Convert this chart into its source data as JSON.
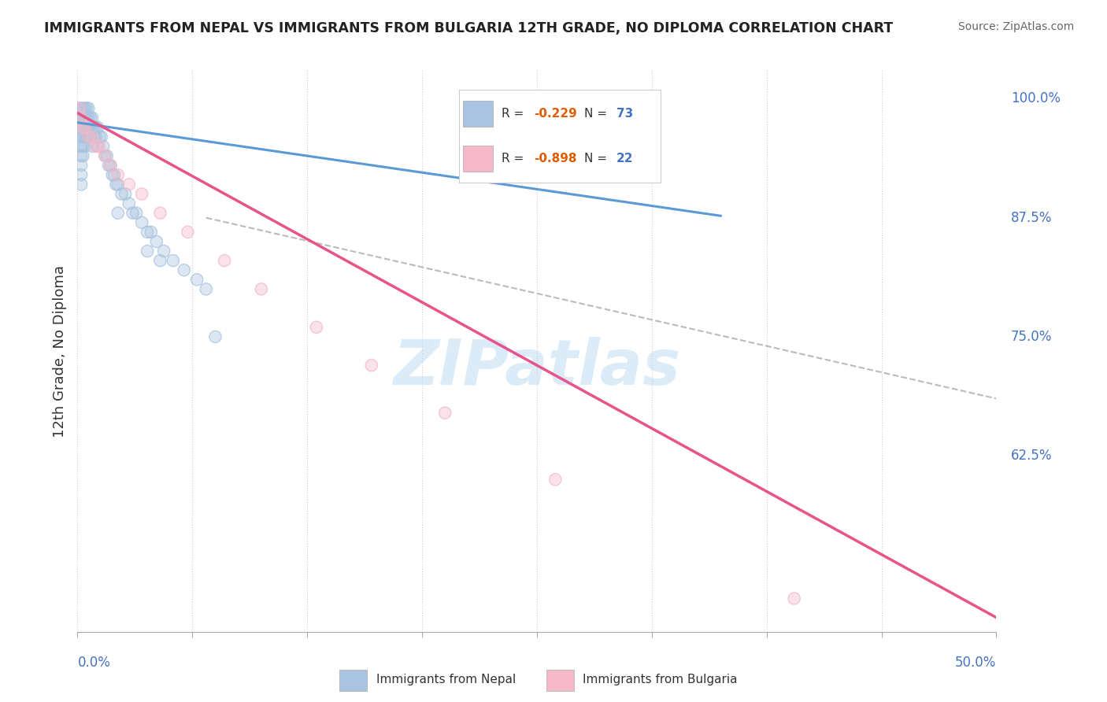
{
  "title": "IMMIGRANTS FROM NEPAL VS IMMIGRANTS FROM BULGARIA 12TH GRADE, NO DIPLOMA CORRELATION CHART",
  "source": "Source: ZipAtlas.com",
  "ylabel_label": "12th Grade, No Diploma",
  "x_min": 0.0,
  "x_max": 0.5,
  "y_min": 0.44,
  "y_max": 1.03,
  "nepal_color": "#a8c4e0",
  "nepal_line_color": "#5b9bd5",
  "bulgaria_color": "#f4b8c8",
  "bulgaria_line_color": "#e8538a",
  "dashed_line_color": "#bbbbbb",
  "nepal_R": -0.229,
  "nepal_N": 73,
  "bulgaria_R": -0.898,
  "bulgaria_N": 22,
  "watermark": "ZIPatlas",
  "background_color": "#ffffff",
  "nepal_scatter_x": [
    0.001,
    0.001,
    0.001,
    0.001,
    0.002,
    0.002,
    0.002,
    0.002,
    0.002,
    0.002,
    0.002,
    0.002,
    0.002,
    0.003,
    0.003,
    0.003,
    0.003,
    0.003,
    0.003,
    0.004,
    0.004,
    0.004,
    0.004,
    0.004,
    0.005,
    0.005,
    0.005,
    0.005,
    0.006,
    0.006,
    0.006,
    0.006,
    0.007,
    0.007,
    0.007,
    0.008,
    0.008,
    0.008,
    0.009,
    0.009,
    0.01,
    0.01,
    0.011,
    0.011,
    0.012,
    0.013,
    0.014,
    0.015,
    0.016,
    0.017,
    0.018,
    0.019,
    0.02,
    0.021,
    0.022,
    0.024,
    0.026,
    0.028,
    0.03,
    0.032,
    0.035,
    0.038,
    0.04,
    0.043,
    0.047,
    0.052,
    0.058,
    0.065,
    0.07,
    0.022,
    0.038,
    0.045,
    0.075
  ],
  "nepal_scatter_y": [
    0.99,
    0.98,
    0.97,
    0.96,
    0.99,
    0.98,
    0.97,
    0.96,
    0.95,
    0.94,
    0.93,
    0.92,
    0.91,
    0.99,
    0.98,
    0.97,
    0.96,
    0.95,
    0.94,
    0.99,
    0.98,
    0.97,
    0.96,
    0.95,
    0.99,
    0.98,
    0.97,
    0.96,
    0.99,
    0.98,
    0.97,
    0.96,
    0.98,
    0.97,
    0.96,
    0.98,
    0.97,
    0.95,
    0.97,
    0.96,
    0.97,
    0.96,
    0.97,
    0.95,
    0.96,
    0.96,
    0.95,
    0.94,
    0.94,
    0.93,
    0.93,
    0.92,
    0.92,
    0.91,
    0.91,
    0.9,
    0.9,
    0.89,
    0.88,
    0.88,
    0.87,
    0.86,
    0.86,
    0.85,
    0.84,
    0.83,
    0.82,
    0.81,
    0.8,
    0.88,
    0.84,
    0.83,
    0.75
  ],
  "bulgaria_scatter_x": [
    0.001,
    0.002,
    0.003,
    0.004,
    0.006,
    0.008,
    0.01,
    0.012,
    0.015,
    0.018,
    0.022,
    0.028,
    0.035,
    0.045,
    0.06,
    0.08,
    0.1,
    0.13,
    0.16,
    0.2,
    0.26,
    0.39
  ],
  "bulgaria_scatter_y": [
    0.99,
    0.98,
    0.97,
    0.97,
    0.96,
    0.96,
    0.95,
    0.95,
    0.94,
    0.93,
    0.92,
    0.91,
    0.9,
    0.88,
    0.86,
    0.83,
    0.8,
    0.76,
    0.72,
    0.67,
    0.6,
    0.475
  ]
}
